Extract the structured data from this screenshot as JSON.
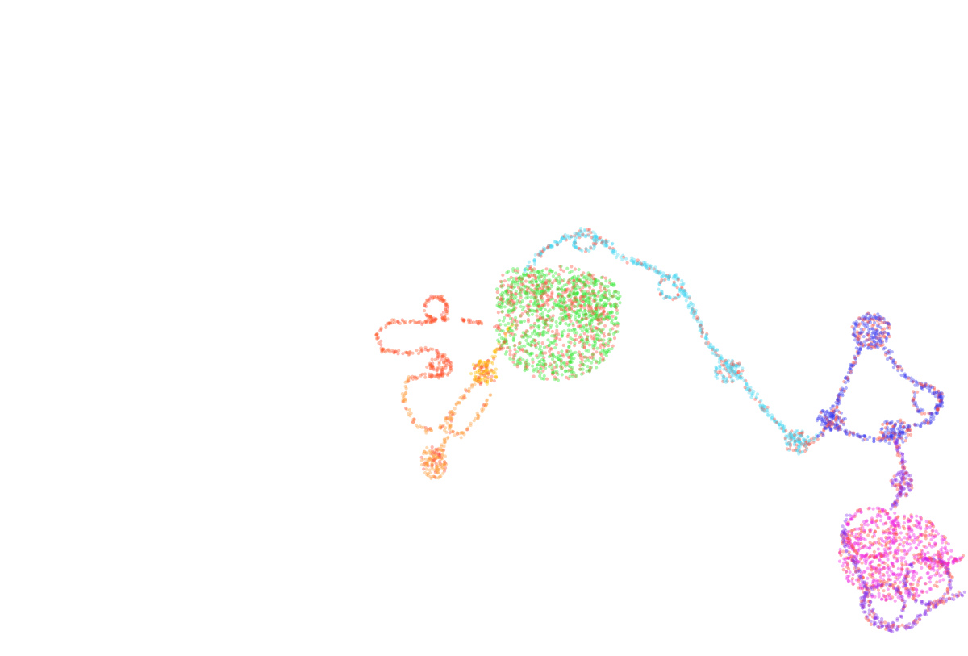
{
  "scene": {
    "background": "#ffffff",
    "dot_opacity": 0.38,
    "overlay_color": "#ff4a3a",
    "segments": [
      {
        "name": "red-orange-loop",
        "color": "#ff5a2a"
      },
      {
        "name": "orange-curl",
        "color": "#ff9a3a"
      },
      {
        "name": "yellow-knot",
        "color": "#ffb800"
      },
      {
        "name": "green-cluster",
        "color": "#2ee82e"
      },
      {
        "name": "cyan-strand",
        "color": "#49d8f2"
      },
      {
        "name": "blue-knot",
        "color": "#3a3aee"
      },
      {
        "name": "purple-tail",
        "color": "#8a32e8"
      },
      {
        "name": "magenta-cluster",
        "color": "#f020e0"
      }
    ]
  }
}
